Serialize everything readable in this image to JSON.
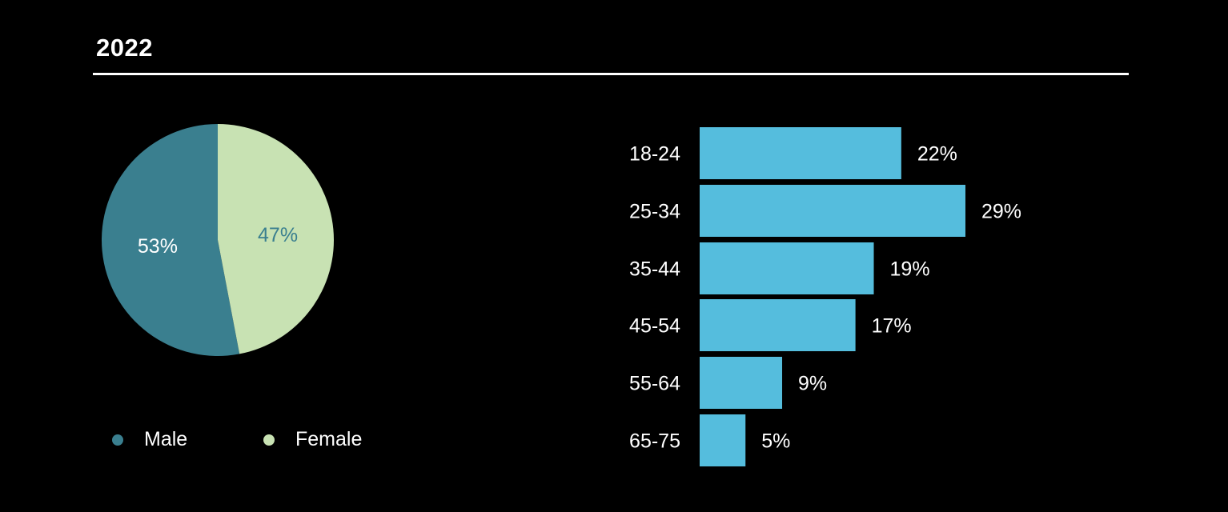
{
  "header": {
    "title": "2022"
  },
  "colors": {
    "male": "#3a7f8f",
    "female": "#c8e2b3",
    "bar": "#55bddd",
    "text": "#ffffff",
    "background": "#000000"
  },
  "chart_data": [
    {
      "type": "pie",
      "slices": [
        {
          "label": "Male",
          "value": 53,
          "value_label": "53%"
        },
        {
          "label": "Female",
          "value": 47,
          "value_label": "47%"
        }
      ],
      "legend_placement": "bottom"
    },
    {
      "type": "bar",
      "orientation": "horizontal",
      "categories": [
        "18-24",
        "25-34",
        "35-44",
        "45-54",
        "55-64",
        "65-75"
      ],
      "values": [
        22,
        29,
        19,
        17,
        9,
        5
      ],
      "value_labels": [
        "22%",
        "29%",
        "19%",
        "17%",
        "9%",
        "5%"
      ]
    }
  ]
}
